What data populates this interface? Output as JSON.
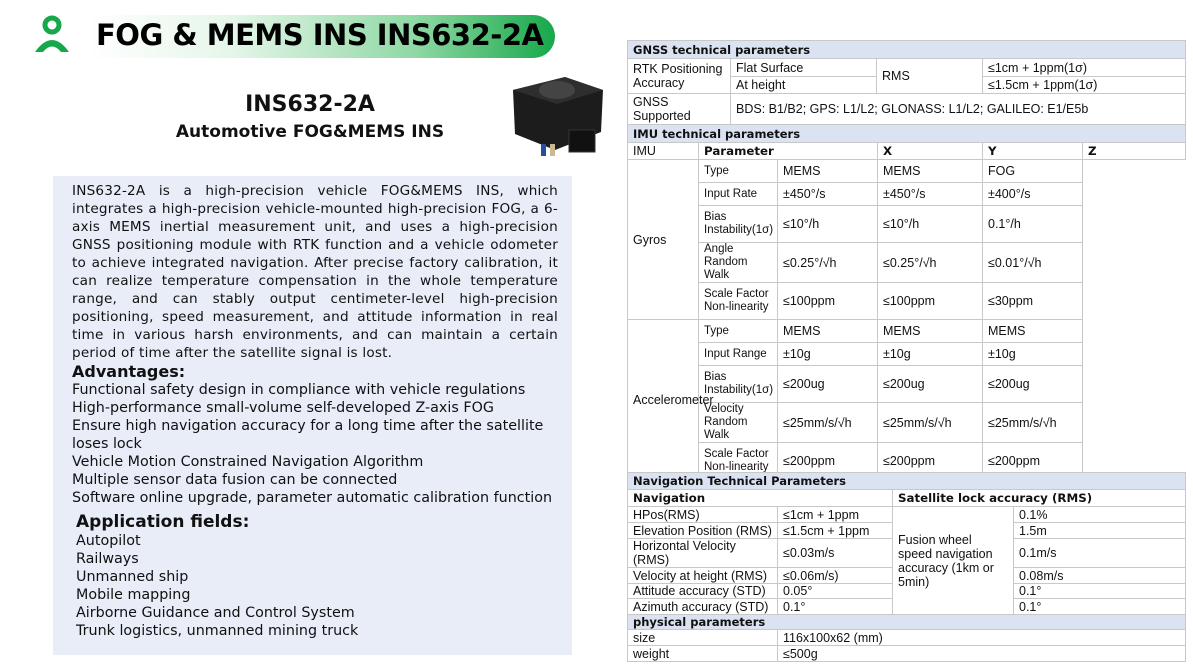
{
  "banner": {
    "title": "FOG & MEMS INS INS632-2A",
    "accent": "#17a84a"
  },
  "product": {
    "title": "INS632-2A",
    "subtitle": "Automotive FOG&MEMS INS"
  },
  "description": {
    "text": "INS632-2A is a high-precision vehicle FOG&MEMS INS, which integrates a high-precision vehicle-mounted high-precision FOG, a 6-axis MEMS inertial measurement unit, and uses a high-precision GNSS positioning module with RTK function and a vehicle odometer to achieve integrated navigation. After precise factory calibration, it can realize temperature compensation in the whole temperature range, and can stably output centimeter-level high-precision positioning, speed measurement, and attitude information in real time in various harsh environments, and can maintain a certain period of time after the satellite signal is lost.",
    "advantages_title": "Advantages:",
    "advantages": [
      "Functional safety design in compliance with vehicle regulations",
      "High-performance small-volume self-developed Z-axis FOG",
      "Ensure high navigation accuracy for a long time after the satellite loses lock",
      "Vehicle Motion Constrained Navigation Algorithm",
      "Multiple sensor data fusion  can be connected",
      "Software online upgrade, parameter automatic calibration function"
    ],
    "applications_title": "Application fields:",
    "applications": [
      "Autopilot",
      "Railways",
      "Unmanned ship",
      "Mobile mapping",
      "Airborne Guidance and Control System",
      "Trunk logistics, unmanned mining truck"
    ]
  },
  "gnss": {
    "header": "GNSS technical parameters",
    "rtk_label": "RTK Positioning Accuracy",
    "flat": "Flat Surface",
    "height": "At height",
    "rms": "RMS",
    "flat_val": "≤1cm + 1ppm(1σ)",
    "height_val": "≤1.5cm + 1ppm(1σ)",
    "supported_label": "GNSS Supported",
    "supported_val": "BDS: B1/B2; GPS: L1/L2; GLONASS: L1/L2; GALILEO: E1/E5b"
  },
  "imu": {
    "header": "IMU technical parameters",
    "imu_label": "IMU",
    "param": "Parameter",
    "x": "X",
    "y": "Y",
    "z": "Z",
    "groups": [
      {
        "name": "Gyros",
        "rows": [
          [
            "Type",
            "MEMS",
            "MEMS",
            "FOG"
          ],
          [
            "Input Rate",
            "±450°/s",
            "±450°/s",
            "±400°/s"
          ],
          [
            "Bias Instability(1σ)",
            "≤10°/h",
            "≤10°/h",
            "0.1°/h"
          ],
          [
            "Angle Random Walk",
            "≤0.25°/√h",
            "≤0.25°/√h",
            "≤0.01°/√h"
          ],
          [
            "Scale Factor Non-linearity",
            "≤100ppm",
            "≤100ppm",
            "≤30ppm"
          ]
        ]
      },
      {
        "name": "Accelerometer",
        "rows": [
          [
            "Type",
            "MEMS",
            "MEMS",
            "MEMS"
          ],
          [
            "Input Range",
            "±10g",
            "±10g",
            "±10g"
          ],
          [
            "Bias Instability(1σ)",
            "≤200ug",
            "≤200ug",
            "≤200ug"
          ],
          [
            "Velocity Random Walk",
            "≤25mm/s/√h",
            "≤25mm/s/√h",
            "≤25mm/s/√h"
          ],
          [
            "Scale Factor Non-linearity",
            "≤200ppm",
            "≤200ppm",
            "≤200ppm"
          ]
        ]
      }
    ]
  },
  "nav": {
    "header": "Navigation Technical Parameters",
    "nav_label": "Navigation",
    "sat_label": "Satellite lock accuracy (RMS)",
    "fusion_label": "Fusion wheel speed navigation accuracy (1km or 5min)",
    "rows": [
      [
        "HPos(RMS)",
        "≤1cm + 1ppm",
        "0.1%"
      ],
      [
        "Elevation Position (RMS)",
        "≤1.5cm + 1ppm",
        "1.5m"
      ],
      [
        "Horizontal Velocity (RMS)",
        "≤0.03m/s",
        "0.1m/s"
      ],
      [
        "Velocity at height (RMS)",
        "≤0.06m/s)",
        "0.08m/s"
      ],
      [
        "Attitude accuracy (STD)",
        "0.05°",
        "0.1°"
      ],
      [
        "Azimuth accuracy (STD)",
        "0.1°",
        "0.1°"
      ]
    ]
  },
  "physical": {
    "header": "physical parameters",
    "rows": [
      [
        "size",
        "116x100x62  (mm)"
      ],
      [
        "weight",
        "≤500g"
      ]
    ]
  }
}
